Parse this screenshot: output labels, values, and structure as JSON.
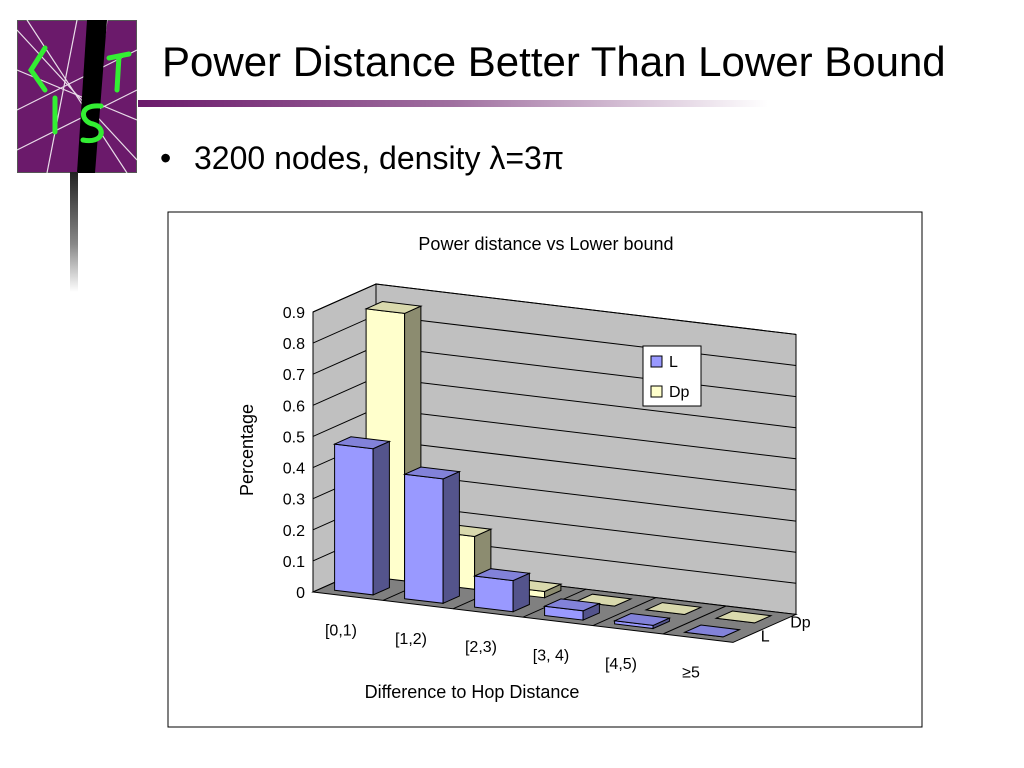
{
  "slide": {
    "title": "Power Distance Better Than Lower Bound",
    "bullet": "3200 nodes, density λ=3π",
    "bullet_marker": "•"
  },
  "colors": {
    "series_L": "#9999ff",
    "series_Dp": "#ffffcc",
    "floor": "#808080",
    "walls": "#c0c0c0",
    "accent_purple": "#6b1a6b"
  },
  "chart_data": {
    "type": "bar",
    "style": "3d-clustered",
    "title": "Power distance vs Lower bound",
    "xlabel": "Difference to Hop Distance",
    "ylabel": "Percentage",
    "ylim": [
      0,
      0.9
    ],
    "yticks": [
      "0",
      "0.1",
      "0.2",
      "0.3",
      "0.4",
      "0.5",
      "0.6",
      "0.7",
      "0.8",
      "0.9"
    ],
    "grid": true,
    "legend_position": "upper-right",
    "categories": [
      "[0,1)",
      "[1,2)",
      "[2,3)",
      "[3, 4)",
      "[4,5)",
      "≥5"
    ],
    "depth_labels": [
      "Dp",
      "L"
    ],
    "series": [
      {
        "name": "L",
        "values": [
          0.47,
          0.4,
          0.1,
          0.03,
          0.01,
          0.0
        ]
      },
      {
        "name": "Dp",
        "values": [
          0.86,
          0.17,
          0.02,
          0.0,
          0.0,
          0.0
        ]
      }
    ]
  }
}
